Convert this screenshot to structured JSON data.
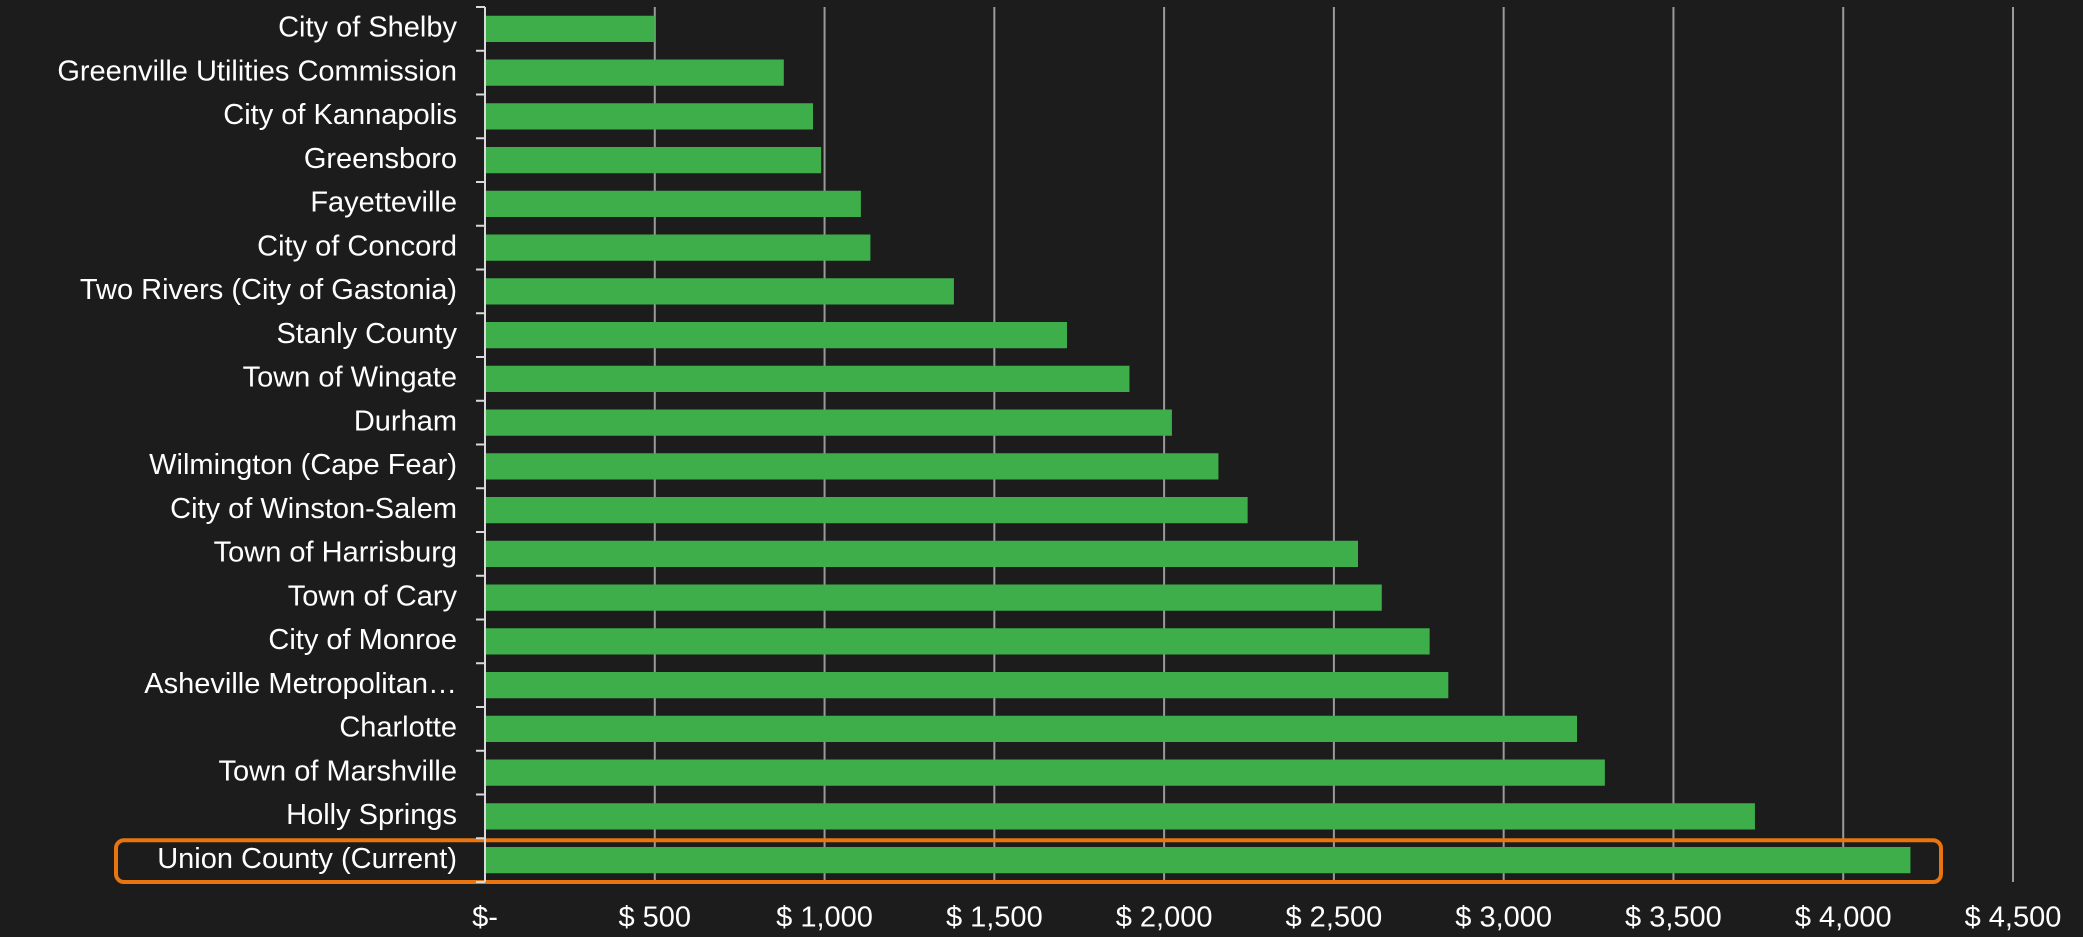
{
  "chart_data": {
    "type": "barh",
    "categories": [
      "City of Shelby",
      "Greenville Utilities Commission",
      "City of Kannapolis",
      "Greensboro",
      "Fayetteville",
      "City of Concord",
      "Two Rivers (City of Gastonia)",
      "Stanly County",
      "Town of Wingate",
      "Durham",
      "Wilmington (Cape Fear)",
      "City of Winston-Salem",
      "Town of Harrisburg",
      "Town of Cary",
      "City of Monroe",
      "Asheville Metropolitan…",
      "Charlotte",
      "Town of Marshville",
      "Holly Springs",
      "Union County (Current)"
    ],
    "values": [
      500,
      880,
      966,
      990,
      1107,
      1135,
      1381,
      1714,
      1898,
      2023,
      2160,
      2246,
      2571,
      2641,
      2782,
      2837,
      3216,
      3298,
      3740,
      4198
    ],
    "color": "#3dae4a",
    "xlim": [
      0,
      4500
    ],
    "xticks": [
      {
        "value": 0,
        "label": "$-"
      },
      {
        "value": 500,
        "label": "$ 500"
      },
      {
        "value": 1000,
        "label": "$ 1,000"
      },
      {
        "value": 1500,
        "label": "$ 1,500"
      },
      {
        "value": 2000,
        "label": "$ 2,000"
      },
      {
        "value": 2500,
        "label": "$ 2,500"
      },
      {
        "value": 3000,
        "label": "$ 3,000"
      },
      {
        "value": 3500,
        "label": "$ 3,500"
      },
      {
        "value": 4000,
        "label": "$ 4,000"
      },
      {
        "value": 4500,
        "label": "$ 4,500"
      }
    ],
    "grid": true
  }
}
